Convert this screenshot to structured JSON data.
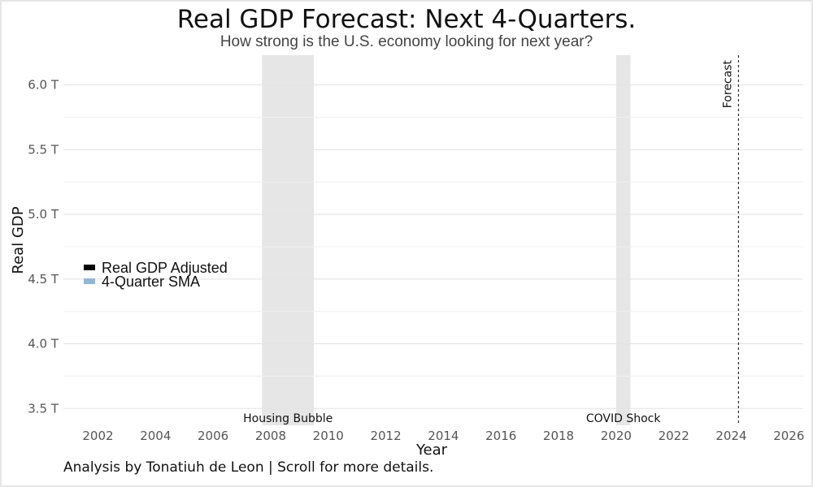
{
  "chart_data": {
    "type": "line",
    "title": "Real GDP Forecast: Next 4-Quarters.",
    "subtitle": "How strong is the U.S. economy looking for next year?",
    "xlabel": "Year",
    "ylabel": "Real GDP",
    "xlim": [
      2000.8,
      2026.5
    ],
    "ylim": [
      3.37,
      6.23
    ],
    "x_ticks": [
      2002,
      2004,
      2006,
      2008,
      2010,
      2012,
      2014,
      2016,
      2018,
      2020,
      2022,
      2024,
      2026
    ],
    "y_ticks": [
      {
        "value": 3.5,
        "label": "3.5 T"
      },
      {
        "value": 4.0,
        "label": "4.0 T"
      },
      {
        "value": 4.5,
        "label": "4.5 T"
      },
      {
        "value": 5.0,
        "label": "5.0 T"
      },
      {
        "value": 5.5,
        "label": "5.5 T"
      },
      {
        "value": 6.0,
        "label": "6.0 T"
      }
    ],
    "y_minor_ticks": [
      3.75,
      4.25,
      4.75,
      5.25,
      5.75
    ],
    "grid": true,
    "legend_position": "left",
    "series": [
      {
        "name": "Real GDP Adjusted",
        "color": "#000000",
        "x": [],
        "values": []
      },
      {
        "name": "4-Quarter SMA",
        "color": "#8fb7d9",
        "x": [],
        "values": []
      }
    ],
    "shaded_regions": [
      {
        "label": "Housing Bubble",
        "x_start": 2007.7,
        "x_end": 2009.5,
        "color": "#e6e6e6"
      },
      {
        "label": "COVID Shock",
        "x_start": 2020.0,
        "x_end": 2020.5,
        "color": "#e6e6e6"
      }
    ],
    "forecast_line": {
      "x": 2024.25,
      "label": "Forecast"
    },
    "caption": "Analysis by Tonatiuh de Leon | Scroll for more details."
  }
}
